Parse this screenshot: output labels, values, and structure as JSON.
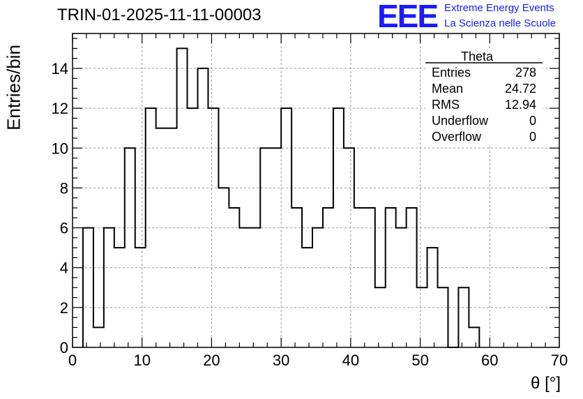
{
  "header": {
    "title": "TRIN-01-2025-11-11-00003",
    "logo_text": "EEE",
    "logo_line1": "Extreme Energy Events",
    "logo_line2": "La Scienza nelle Scuole"
  },
  "chart_data": {
    "type": "bar",
    "histogram": true,
    "xlabel": "θ [°]",
    "ylabel": "Entries/bin",
    "xlim": [
      0,
      70
    ],
    "ylim": [
      0,
      15.75
    ],
    "grid": true,
    "xticks": [
      0,
      10,
      20,
      30,
      40,
      50,
      60,
      70
    ],
    "yticks": [
      0,
      2,
      4,
      6,
      8,
      10,
      12,
      14
    ],
    "bin_width": 1.5,
    "bin_start": 1.5,
    "values": [
      6,
      1,
      6,
      5,
      10,
      5,
      12,
      11,
      11,
      15,
      12,
      14,
      12,
      8,
      7,
      6,
      6,
      10,
      10,
      12,
      7,
      5,
      6,
      7,
      12,
      10,
      7,
      7,
      3,
      7,
      6,
      7,
      3,
      5,
      3,
      0,
      3,
      1
    ],
    "stats_box": {
      "name": "Theta",
      "position": "top-right",
      "rows": [
        {
          "label": "Entries",
          "value": "278"
        },
        {
          "label": "Mean",
          "value": "24.72"
        },
        {
          "label": "RMS",
          "value": "12.94"
        },
        {
          "label": "Underflow",
          "value": "0"
        },
        {
          "label": "Overflow",
          "value": "0"
        }
      ]
    },
    "colors": {
      "line": "#000000",
      "grid": "#999999",
      "logo": "#1a1aff"
    }
  }
}
